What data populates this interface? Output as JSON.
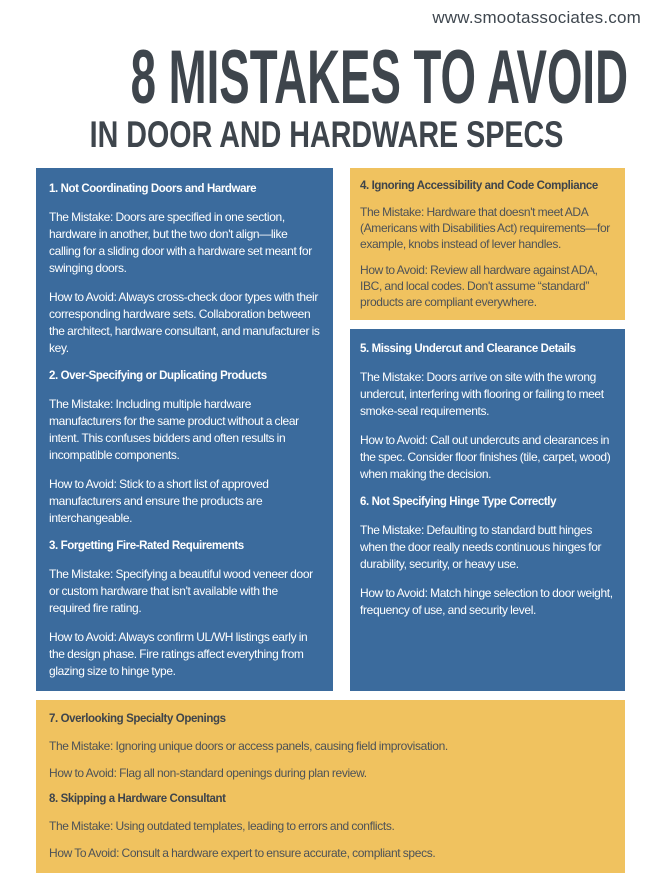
{
  "header": {
    "website_url": "www.smootassociates.com",
    "title": "8 MISTAKES TO AVOID",
    "subtitle": "IN DOOR AND HARDWARE SPECS"
  },
  "palette": {
    "blue": "#3b6b9d",
    "yellow": "#f0c25f",
    "title_dark": "#3e454c",
    "yellow_box_text": "#4d5257",
    "blue_box_text": "#ffffff"
  },
  "mistakes": [
    {
      "heading": "1. Not Coordinating Doors and Hardware",
      "mistake": "The Mistake: Doors are specified in one section, hardware in another, but the two don't align—like calling for a sliding door with a hardware set meant for swinging doors.",
      "avoid": "How to Avoid: Always cross-check door types with their corresponding hardware sets. Collaboration between the architect, hardware consultant, and manufacturer is key."
    },
    {
      "heading": "2. Over-Specifying or Duplicating Products",
      "mistake": "The Mistake: Including multiple hardware manufacturers for the same product without a clear intent. This confuses bidders and often results in incompatible components.",
      "avoid": "How to Avoid: Stick to a short list of approved manufacturers and ensure the products are interchangeable."
    },
    {
      "heading": "3. Forgetting Fire-Rated Requirements",
      "mistake": "The Mistake: Specifying a beautiful wood veneer door or custom hardware that isn't available with the required fire rating.",
      "avoid": "How to Avoid: Always confirm UL/WH listings early in the design phase. Fire ratings affect everything from glazing size to hinge type."
    },
    {
      "heading": "4. Ignoring Accessibility and Code Compliance",
      "mistake": "The Mistake: Hardware that doesn't meet ADA (Americans with Disabilities Act) requirements—for example, knobs instead of lever handles.",
      "avoid": "How to Avoid: Review all hardware against ADA, IBC, and local codes. Don't assume “standard” products are compliant everywhere."
    },
    {
      "heading": "5. Missing Undercut and Clearance Details",
      "mistake": "The Mistake: Doors arrive on site with the wrong undercut, interfering with flooring or failing to meet smoke-seal requirements.",
      "avoid": "How to Avoid: Call out undercuts and clearances in the spec. Consider floor finishes (tile, carpet, wood) when making the decision."
    },
    {
      "heading": "6. Not Specifying Hinge Type Correctly",
      "mistake": "The Mistake: Defaulting to standard butt hinges when the door really needs continuous hinges for durability, security, or heavy use.",
      "avoid": "How to Avoid: Match hinge selection to door weight, frequency of use, and security level."
    },
    {
      "heading": "7. Overlooking Specialty Openings",
      "mistake": "The Mistake: Ignoring unique doors or access panels, causing field improvisation.",
      "avoid": "How to Avoid: Flag all non-standard openings during plan review."
    },
    {
      "heading": "8. Skipping a Hardware Consultant",
      "mistake": "The Mistake: Using outdated templates, leading to errors and conflicts.",
      "avoid": "How To Avoid: Consult a hardware expert to ensure accurate, compliant specs."
    }
  ]
}
